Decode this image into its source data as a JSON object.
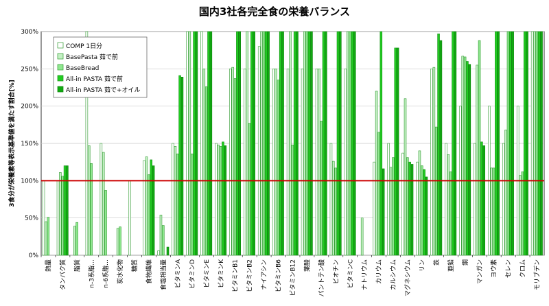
{
  "chart_data": {
    "type": "bar",
    "title": "国内3社各完全食の栄養バランス",
    "ylabel": "3食分が栄養素等表示基準値を満たす割合[%]",
    "xlabel": "",
    "ylim": [
      0,
      300
    ],
    "yticks": [
      "0%",
      "50%",
      "100%",
      "150%",
      "200%",
      "250%",
      "300%"
    ],
    "reference_line": 100,
    "reference_color": "#cc0000",
    "grid": true,
    "legend_position": "top-left",
    "categories": [
      "熱量",
      "タンパク質",
      "脂質",
      "n-3系脂…",
      "n-6系脂…",
      "炭水化物",
      "糖質",
      "食物繊維",
      "食塩相当量",
      "ビタミンA",
      "ビタミンD",
      "ビタミンE",
      "ビタミンK",
      "ビタミンB1",
      "ビタミンB2",
      "ナイアシン",
      "ビタミンB6",
      "ビタミンB12",
      "葉酸",
      "パントテン酸",
      "ビオチン",
      "ビタミンC",
      "ナトリウム",
      "カリウム",
      "カルシウム",
      "マグネシウム",
      "リン",
      "鉄",
      "亜鉛",
      "銅",
      "マンガン",
      "ヨウ素",
      "セレン",
      "クロム",
      "モリブデン"
    ],
    "series": [
      {
        "name": "COMP 1日分",
        "color": "#ffffff",
        "stroke": "#2e9a2e",
        "values": [
          100,
          100,
          0,
          300,
          150,
          0,
          100,
          127,
          6,
          150,
          300,
          300,
          150,
          250,
          250,
          280,
          250,
          250,
          250,
          250,
          150,
          250,
          0,
          125,
          150,
          137,
          125,
          250,
          150,
          200,
          150,
          200,
          150,
          200,
          300
        ]
      },
      {
        "name": "BasePasta 茹で前",
        "color": "#c4f0c4",
        "stroke": "#2e9a2e",
        "values": [
          45,
          111,
          39,
          147,
          138,
          36,
          0,
          132,
          54,
          146,
          300,
          250,
          148,
          252,
          300,
          300,
          250,
          300,
          300,
          250,
          126,
          300,
          50,
          220,
          118,
          210,
          140,
          252,
          135,
          267,
          255,
          117,
          168,
          107,
          300
        ]
      },
      {
        "name": "BaseBread",
        "color": "#90e890",
        "stroke": "#2e9a2e",
        "values": [
          51,
          106,
          44,
          123,
          87,
          38,
          0,
          108,
          40,
          136,
          136,
          226,
          146,
          237,
          177,
          300,
          235,
          148,
          300,
          180,
          117,
          300,
          0,
          165,
          131,
          131,
          120,
          172,
          112,
          266,
          288,
          117,
          300,
          112,
          300
        ]
      },
      {
        "name": "All-in PASTA 茹で前",
        "color": "#22cc22",
        "stroke": "#169016",
        "values": [
          0,
          120,
          0,
          0,
          0,
          0,
          0,
          128,
          0,
          241,
          300,
          300,
          152,
          300,
          300,
          300,
          300,
          300,
          300,
          300,
          300,
          300,
          0,
          300,
          278,
          125,
          115,
          297,
          300,
          260,
          152,
          300,
          300,
          300,
          300
        ]
      },
      {
        "name": "All-in PASTA 茹で+オイル",
        "color": "#11aa11",
        "stroke": "#0c800c",
        "values": [
          0,
          120,
          0,
          0,
          0,
          0,
          0,
          120,
          11,
          239,
          300,
          300,
          147,
          300,
          300,
          300,
          300,
          300,
          300,
          300,
          300,
          300,
          0,
          116,
          278,
          122,
          105,
          288,
          300,
          256,
          147,
          300,
          300,
          300,
          300
        ]
      }
    ]
  }
}
